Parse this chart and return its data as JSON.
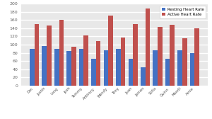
{
  "categories": [
    "Doc",
    "Justin",
    "Long",
    "Josh",
    "Tommy",
    "Anthony",
    "Wendy",
    "Tony",
    "Juan",
    "James",
    "Sofia",
    "Quinn",
    "Mandi",
    "Arnie"
  ],
  "resting": [
    90,
    97,
    90,
    84,
    90,
    65,
    86,
    90,
    65,
    45,
    86,
    65,
    86,
    80
  ],
  "active": [
    150,
    147,
    160,
    95,
    123,
    108,
    170,
    118,
    150,
    188,
    143,
    148,
    116,
    140
  ],
  "resting_color": "#4472C4",
  "active_color": "#C0504D",
  "plot_bg": "#FFFFFF",
  "fig_bg": "#FFFFFF",
  "grid_color": "#FFFFFF",
  "ylabel_step": 20,
  "ymax": 200,
  "legend_resting": "Resting Heart Rate",
  "legend_active": "Active Heart Rate"
}
